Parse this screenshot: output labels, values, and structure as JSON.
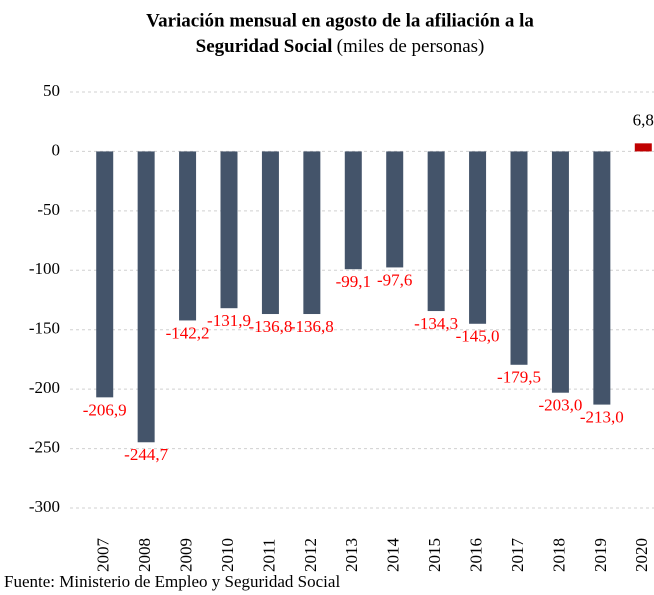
{
  "chart_data": {
    "type": "bar",
    "title": [
      "Variación mensual en agosto de la afiliación a la",
      "Seguridad Social"
    ],
    "subtitle": "(miles de personas)",
    "categories": [
      "2007",
      "2008",
      "2009",
      "2010",
      "2011",
      "2012",
      "2013",
      "2014",
      "2015",
      "2016",
      "2017",
      "2018",
      "2019",
      "2020"
    ],
    "values": [
      -206.9,
      -244.7,
      -142.2,
      -131.9,
      -136.8,
      -136.8,
      -99.1,
      -97.6,
      -134.3,
      -145.0,
      -179.5,
      -203.0,
      -213.0,
      6.8
    ],
    "value_labels": [
      "-206,9",
      "-244,7",
      "-142,2",
      "-131,9",
      "-136,8",
      "-136,8",
      "-99,1",
      "-97,6",
      "-134,3",
      "-145,0",
      "-179,5",
      "-203,0",
      "-213,0",
      "6,8"
    ],
    "colors": [
      "#44546a",
      "#44546a",
      "#44546a",
      "#44546a",
      "#44546a",
      "#44546a",
      "#44546a",
      "#44546a",
      "#44546a",
      "#44546a",
      "#44546a",
      "#44546a",
      "#44546a",
      "#c00000"
    ],
    "ylim": [
      -300,
      50
    ],
    "yticks": [
      -300,
      -250,
      -200,
      -150,
      -100,
      -50,
      0,
      50
    ],
    "grid": true,
    "source": "Fuente:  Ministerio de Empleo  y Seguridad Social"
  }
}
